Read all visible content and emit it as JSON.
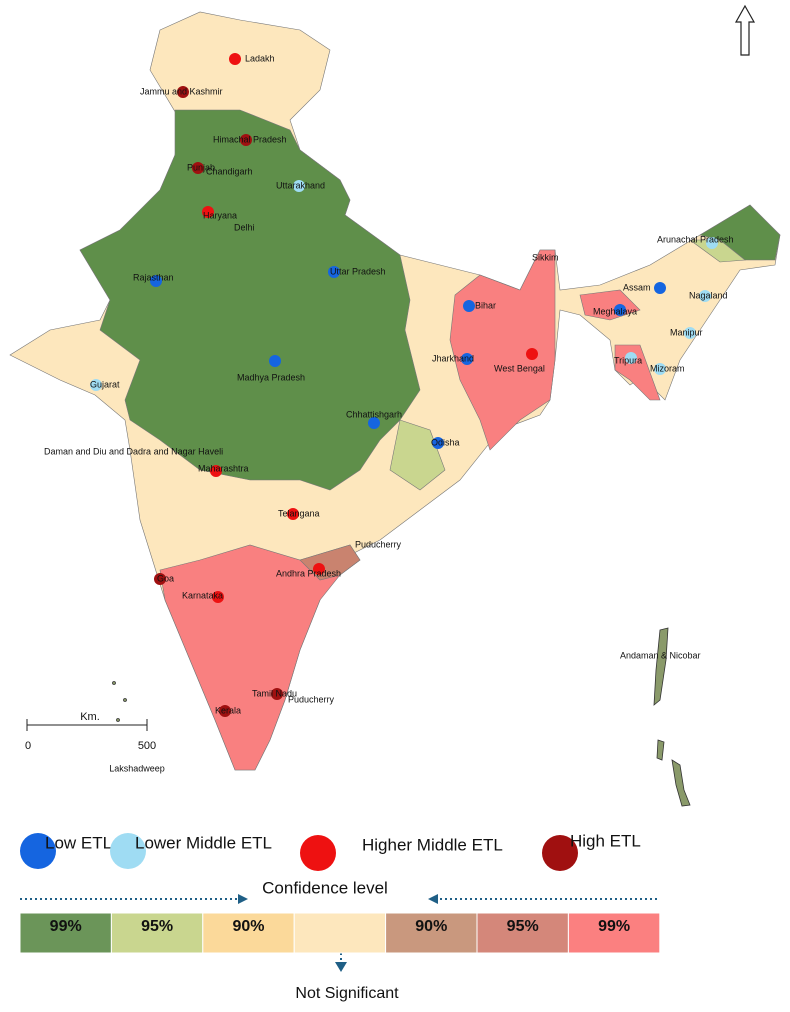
{
  "legend": [
    {
      "label": "Low ETL",
      "color": "#1565e0",
      "places": [
        "Rajasthan",
        "Uttar Pradesh",
        "Madhya Pradesh",
        "Chhattishgarh",
        "Odisha",
        "Bihar",
        "Jharkhand",
        "Assam",
        "Meghalaya"
      ]
    },
    {
      "label": "Lower Middle ETL",
      "color": "#9fdcf3",
      "places": [
        "Uttarakhand",
        "Gujarat",
        "Arunachal Pradesh",
        "Nagaland",
        "Manipur",
        "Tripura",
        "Mizoram"
      ]
    },
    {
      "label": "Higher Middle ETL",
      "color": "#ee1111",
      "places": [
        "Ladakh",
        "Haryana",
        "West Bengal",
        "Maharashtra",
        "Telangana",
        "Andhra Pradesh",
        "Karnataka"
      ]
    },
    {
      "label": "High ETL",
      "color": "#a01010",
      "places": [
        "Jammu and Kashmir",
        "Himachal Pradesh",
        "Punjab",
        "Goa",
        "Tamil Nadu",
        "Kerala"
      ]
    }
  ],
  "other_places": [
    "Chandigarh",
    "Delhi",
    "Sikkim",
    "Daman and Diu and Dadra and Nagar Haveli",
    "Puducherry",
    "Puducherry",
    "Andaman & Nicobar"
  ],
  "scale": {
    "unit": "Km.",
    "ticks": [
      0,
      500
    ],
    "island": "Lakshadweep"
  },
  "confidence": {
    "title": "Confidence level",
    "levels": [
      "99%",
      "95%",
      "90%",
      "90%",
      "95%",
      "99%"
    ],
    "not_significant": "Not Significant"
  }
}
